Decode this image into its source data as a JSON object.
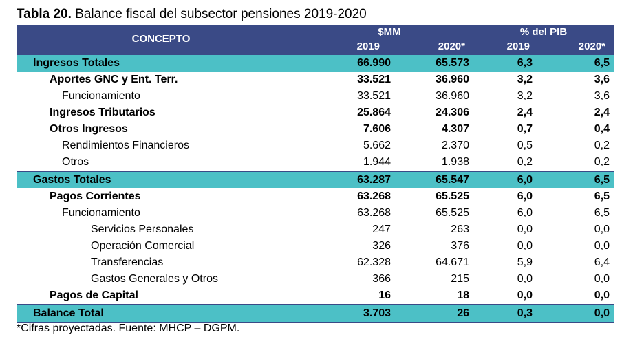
{
  "title": {
    "bold": "Tabla 20.",
    "text": " Balance fiscal del subsector pensiones 2019-2020"
  },
  "header": {
    "concept": "CONCEPTO",
    "group_mm": "$MM",
    "group_pib": "% del PIB",
    "years": [
      "2019",
      "2020*",
      "2019",
      "2020*"
    ]
  },
  "rows": [
    {
      "concept": "Ingresos Totales",
      "values": [
        "66.990",
        "65.573",
        "6,3",
        "6,5"
      ]
    },
    {
      "concept": "Aportes GNC y Ent. Terr.",
      "values": [
        "33.521",
        "36.960",
        "3,2",
        "3,6"
      ]
    },
    {
      "concept": "Funcionamiento",
      "values": [
        "33.521",
        "36.960",
        "3,2",
        "3,6"
      ]
    },
    {
      "concept": "Ingresos Tributarios",
      "values": [
        "25.864",
        "24.306",
        "2,4",
        "2,4"
      ]
    },
    {
      "concept": "Otros Ingresos",
      "values": [
        "7.606",
        "4.307",
        "0,7",
        "0,4"
      ]
    },
    {
      "concept": "Rendimientos Financieros",
      "values": [
        "5.662",
        "2.370",
        "0,5",
        "0,2"
      ]
    },
    {
      "concept": "Otros",
      "values": [
        "1.944",
        "1.938",
        "0,2",
        "0,2"
      ]
    },
    {
      "concept": "Gastos Totales",
      "values": [
        "63.287",
        "65.547",
        "6,0",
        "6,5"
      ]
    },
    {
      "concept": "Pagos Corrientes",
      "values": [
        "63.268",
        "65.525",
        "6,0",
        "6,5"
      ]
    },
    {
      "concept": "Funcionamiento",
      "values": [
        "63.268",
        "65.525",
        "6,0",
        "6,5"
      ]
    },
    {
      "concept": "Servicios Personales",
      "values": [
        "247",
        "263",
        "0,0",
        "0,0"
      ]
    },
    {
      "concept": "Operación Comercial",
      "values": [
        "326",
        "376",
        "0,0",
        "0,0"
      ]
    },
    {
      "concept": "Transferencias",
      "values": [
        "62.328",
        "64.671",
        "5,9",
        "6,4"
      ]
    },
    {
      "concept": "Gastos Generales y Otros",
      "values": [
        "366",
        "215",
        "0,0",
        "0,0"
      ]
    },
    {
      "concept": "Pagos de Capital",
      "values": [
        "16",
        "18",
        "0,0",
        "0,0"
      ]
    },
    {
      "concept": "Balance Total",
      "values": [
        "3.703",
        "26",
        "0,3",
        "0,0"
      ]
    }
  ],
  "footnote": "*Cifras proyectadas. Fuente: MHCP – DGPM.",
  "colors": {
    "header_bg": "#3a4a86",
    "total_row_bg": "#4cc0c6"
  }
}
